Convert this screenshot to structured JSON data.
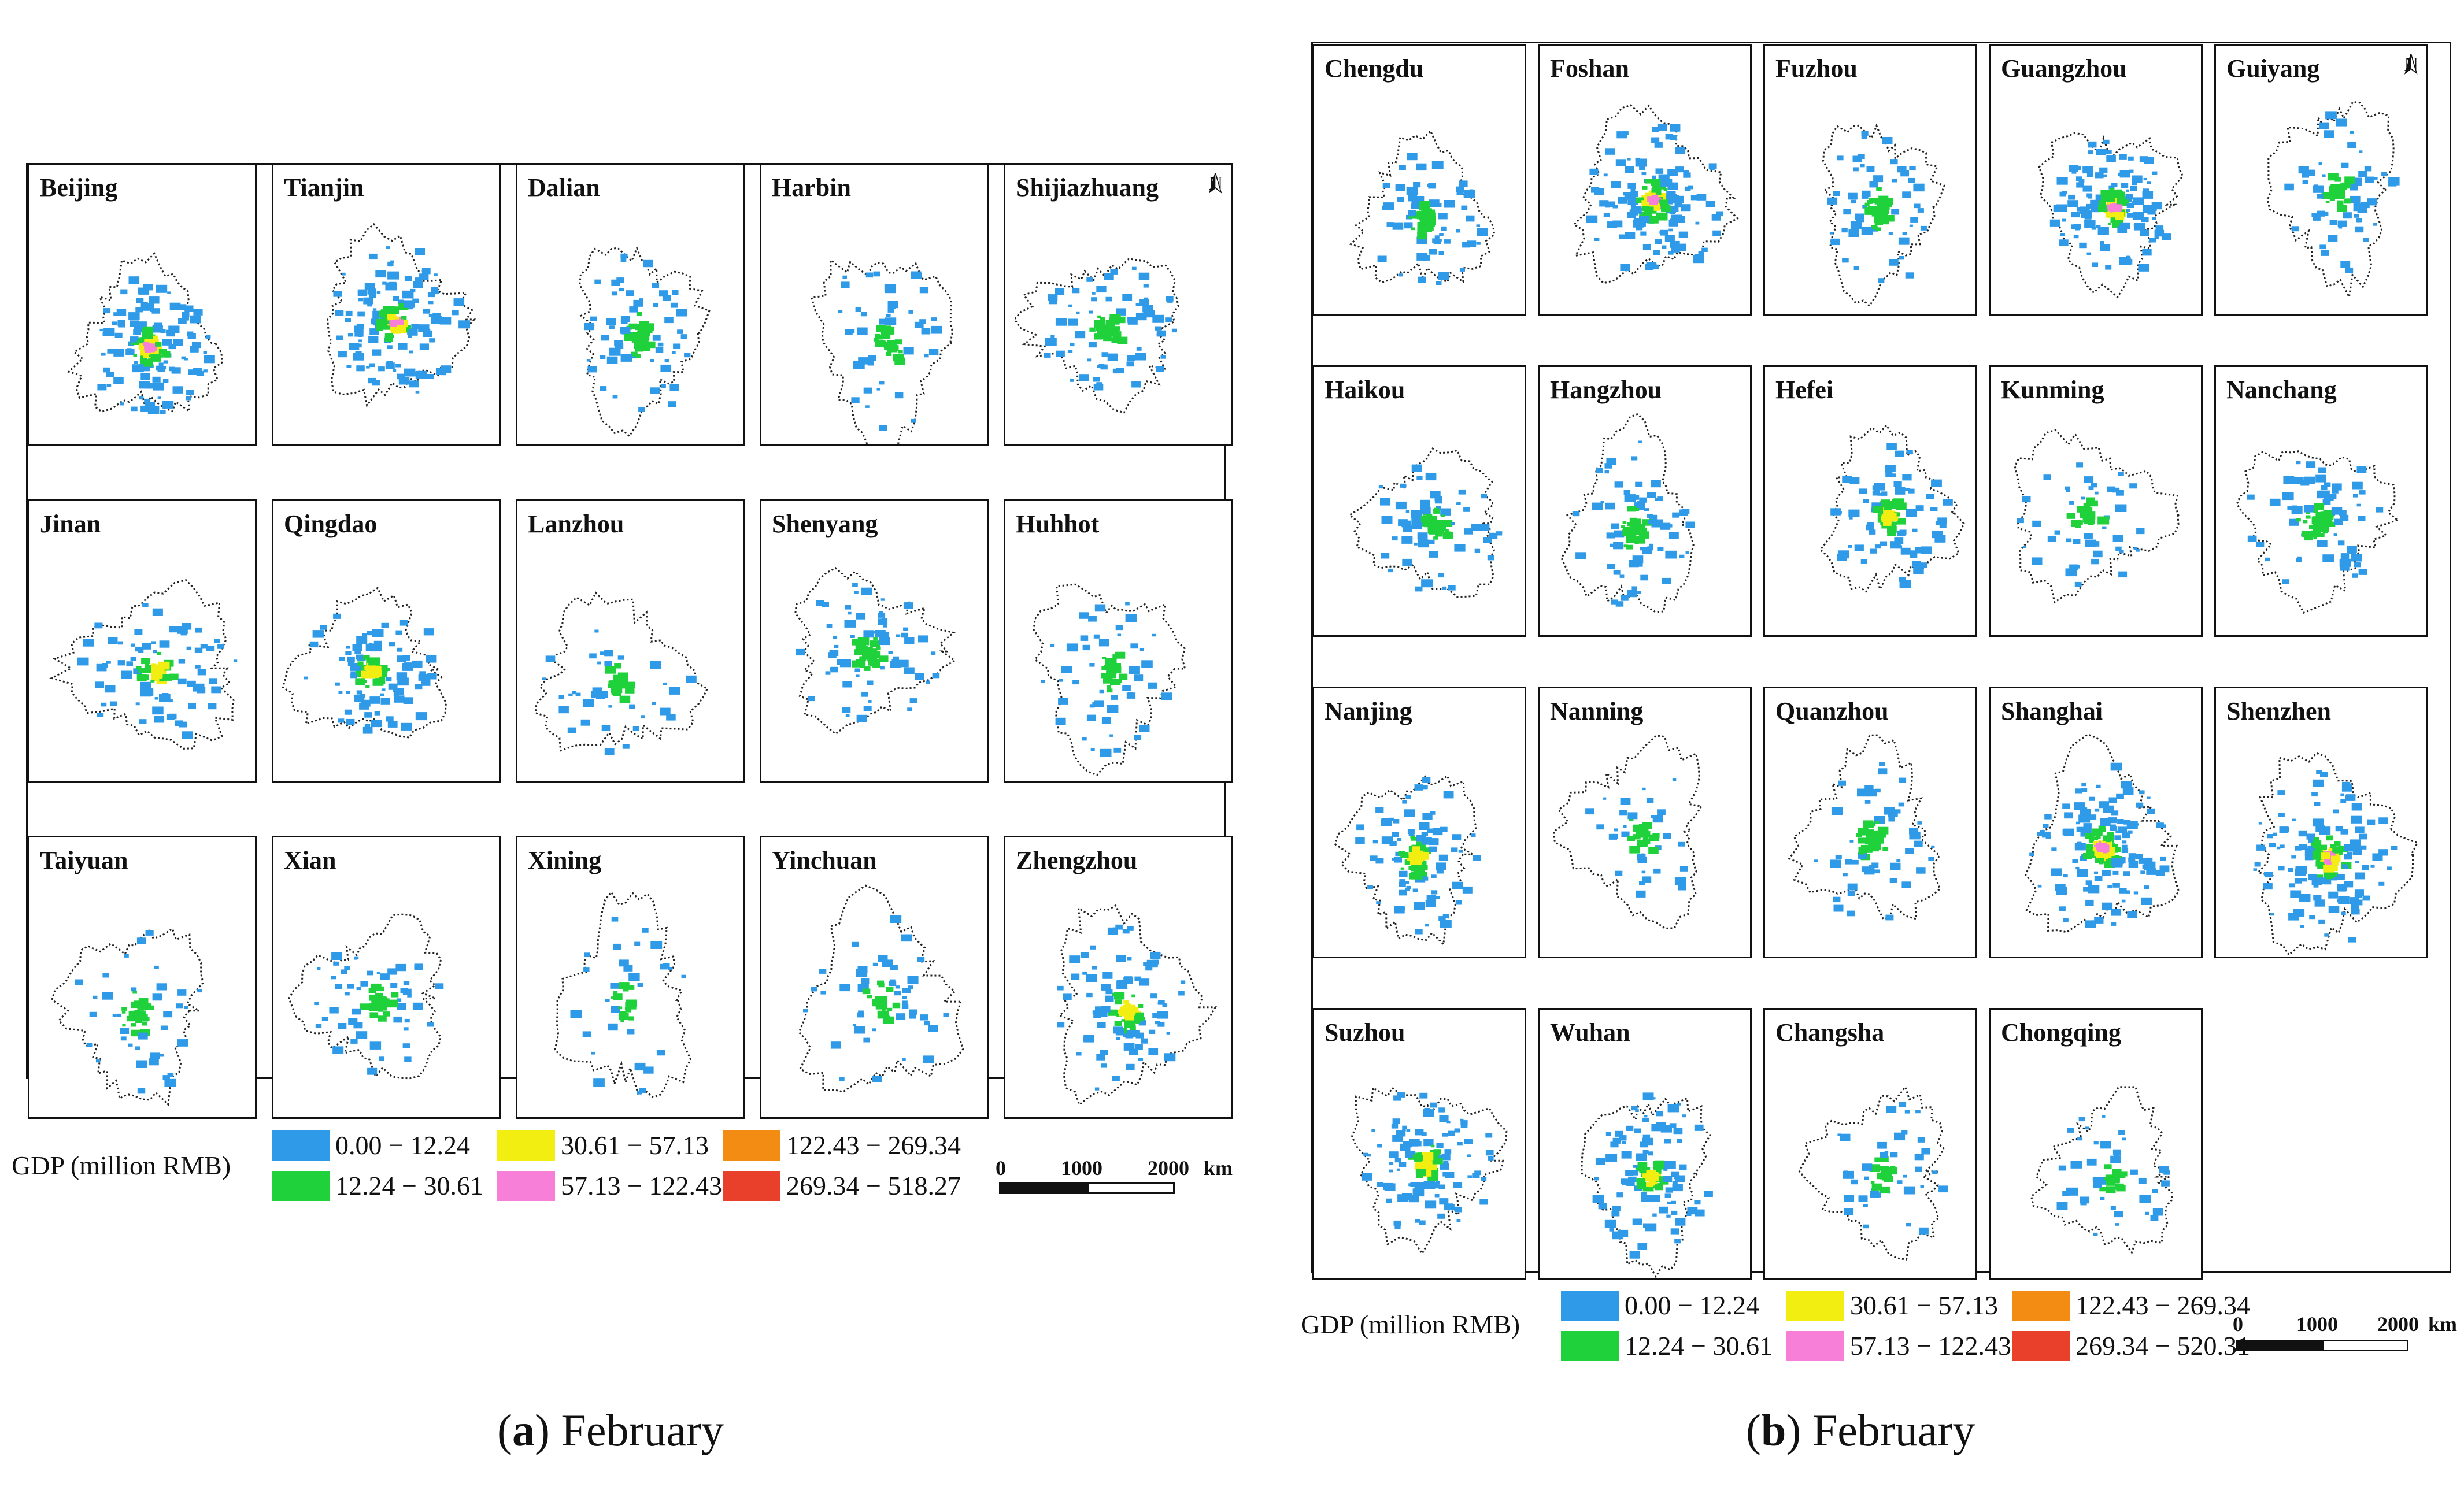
{
  "panel_a": {
    "cities": [
      "Beijing",
      "Tianjin",
      "Dalian",
      "Harbin",
      "Shijiazhuang",
      "Jinan",
      "Qingdao",
      "Lanzhou",
      "Shenyang",
      "Huhhot",
      "Taiyuan",
      "Xian",
      "Xining",
      "Yinchuan",
      "Zhengzhou"
    ],
    "legend_title": "GDP (million RMB)",
    "legend": [
      {
        "label": "0.00 − 12.24",
        "color": "#2f9be8"
      },
      {
        "label": "12.24 − 30.61",
        "color": "#1fd13a"
      },
      {
        "label": "30.61 − 57.13",
        "color": "#f2ee12"
      },
      {
        "label": "57.13 − 122.43",
        "color": "#f77fd8"
      },
      {
        "label": "122.43 − 269.34",
        "color": "#f28c12"
      },
      {
        "label": "269.34 − 518.27",
        "color": "#e8402a"
      }
    ],
    "scale": {
      "t0": "0",
      "t1": "1000",
      "t2": "2000",
      "unit": "km"
    },
    "north": "N",
    "caption_letter": "a",
    "caption_text": "February"
  },
  "panel_b": {
    "cities": [
      "Chengdu",
      "Foshan",
      "Fuzhou",
      "Guangzhou",
      "Guiyang",
      "Haikou",
      "Hangzhou",
      "Hefei",
      "Kunming",
      "Nanchang",
      "Nanjing",
      "Nanning",
      "Quanzhou",
      "Shanghai",
      "Shenzhen",
      "Suzhou",
      "Wuhan",
      "Changsha",
      "Chongqing"
    ],
    "legend_title": "GDP (million RMB)",
    "legend": [
      {
        "label": "0.00 − 12.24",
        "color": "#2f9be8"
      },
      {
        "label": "12.24 − 30.61",
        "color": "#1fd13a"
      },
      {
        "label": "30.61 − 57.13",
        "color": "#f2ee12"
      },
      {
        "label": "57.13 − 122.43",
        "color": "#f77fd8"
      },
      {
        "label": "122.43 − 269.34",
        "color": "#f28c12"
      },
      {
        "label": "269.34 − 520.31",
        "color": "#e8402a"
      }
    ],
    "scale": {
      "t0": "0",
      "t1": "1000",
      "t2": "2000",
      "unit": "km"
    },
    "north": "N",
    "caption_letter": "b",
    "caption_text": "February"
  }
}
